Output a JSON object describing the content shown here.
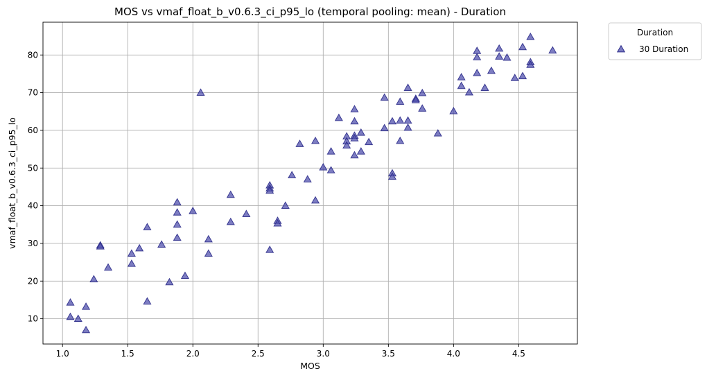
{
  "chart_data": {
    "type": "scatter",
    "title": "MOS vs vmaf_float_b_v0.6.3_ci_p95_lo (temporal pooling: mean) - Duration",
    "xlabel": "MOS",
    "ylabel": "vmaf_float_b_v0.6.3_ci_p95_lo",
    "xlim": [
      0.85,
      4.95
    ],
    "ylim": [
      3.3,
      88.7
    ],
    "xticks": [
      1.0,
      1.5,
      2.0,
      2.5,
      3.0,
      3.5,
      4.0,
      4.5
    ],
    "xtick_labels": [
      "1.0",
      "1.5",
      "2.0",
      "2.5",
      "3.0",
      "3.5",
      "4.0",
      "4.5"
    ],
    "yticks": [
      10,
      20,
      30,
      40,
      50,
      60,
      70,
      80
    ],
    "ytick_labels": [
      "10",
      "20",
      "30",
      "40",
      "50",
      "60",
      "70",
      "80"
    ],
    "grid": true,
    "legend": {
      "title": "Duration",
      "placement": "outside-top-right",
      "entries": [
        "30 Duration"
      ]
    },
    "series": [
      {
        "name": "30 Duration",
        "marker": "triangle",
        "color": "#4b4bab",
        "edge_color": "#2c2c8a",
        "points": [
          [
            1.06,
            14.3
          ],
          [
            1.06,
            10.5
          ],
          [
            1.12,
            10.0
          ],
          [
            1.18,
            13.2
          ],
          [
            1.18,
            7.0
          ],
          [
            1.24,
            20.5
          ],
          [
            1.29,
            29.5
          ],
          [
            1.29,
            29.2
          ],
          [
            1.35,
            23.6
          ],
          [
            1.53,
            27.3
          ],
          [
            1.53,
            24.6
          ],
          [
            1.59,
            28.7
          ],
          [
            1.65,
            34.3
          ],
          [
            1.65,
            14.6
          ],
          [
            1.76,
            29.7
          ],
          [
            1.82,
            19.7
          ],
          [
            1.88,
            40.9
          ],
          [
            1.88,
            38.2
          ],
          [
            1.88,
            35.0
          ],
          [
            1.88,
            31.5
          ],
          [
            1.94,
            21.4
          ],
          [
            2.0,
            38.6
          ],
          [
            2.06,
            70.0
          ],
          [
            2.12,
            31.1
          ],
          [
            2.12,
            27.3
          ],
          [
            2.29,
            42.9
          ],
          [
            2.29,
            35.7
          ],
          [
            2.41,
            37.8
          ],
          [
            2.59,
            45.4
          ],
          [
            2.59,
            44.6
          ],
          [
            2.59,
            44.0
          ],
          [
            2.59,
            28.3
          ],
          [
            2.65,
            36.0
          ],
          [
            2.65,
            35.3
          ],
          [
            2.71,
            40.0
          ],
          [
            2.76,
            48.1
          ],
          [
            2.82,
            56.4
          ],
          [
            2.88,
            47.0
          ],
          [
            2.94,
            57.2
          ],
          [
            2.94,
            41.4
          ],
          [
            3.0,
            50.2
          ],
          [
            3.06,
            54.4
          ],
          [
            3.06,
            49.4
          ],
          [
            3.12,
            63.3
          ],
          [
            3.18,
            58.4
          ],
          [
            3.18,
            57.1
          ],
          [
            3.18,
            56.0
          ],
          [
            3.24,
            65.6
          ],
          [
            3.24,
            62.4
          ],
          [
            3.24,
            58.6
          ],
          [
            3.24,
            57.9
          ],
          [
            3.24,
            53.4
          ],
          [
            3.29,
            59.4
          ],
          [
            3.29,
            54.4
          ],
          [
            3.35,
            56.9
          ],
          [
            3.47,
            68.7
          ],
          [
            3.47,
            60.6
          ],
          [
            3.53,
            62.4
          ],
          [
            3.53,
            48.6
          ],
          [
            3.53,
            47.7
          ],
          [
            3.59,
            67.6
          ],
          [
            3.59,
            62.6
          ],
          [
            3.59,
            57.2
          ],
          [
            3.65,
            71.3
          ],
          [
            3.65,
            62.6
          ],
          [
            3.65,
            60.7
          ],
          [
            3.71,
            68.4
          ],
          [
            3.71,
            68.0
          ],
          [
            3.76,
            69.9
          ],
          [
            3.76,
            65.8
          ],
          [
            3.88,
            59.2
          ],
          [
            4.0,
            65.1
          ],
          [
            4.06,
            74.1
          ],
          [
            4.06,
            71.8
          ],
          [
            4.12,
            70.1
          ],
          [
            4.18,
            81.1
          ],
          [
            4.18,
            79.4
          ],
          [
            4.18,
            75.2
          ],
          [
            4.24,
            71.3
          ],
          [
            4.29,
            75.8
          ],
          [
            4.35,
            81.7
          ],
          [
            4.35,
            79.6
          ],
          [
            4.41,
            79.3
          ],
          [
            4.47,
            73.9
          ],
          [
            4.53,
            82.1
          ],
          [
            4.53,
            74.4
          ],
          [
            4.59,
            84.8
          ],
          [
            4.59,
            78.1
          ],
          [
            4.59,
            77.4
          ],
          [
            4.76,
            81.2
          ]
        ]
      }
    ]
  }
}
